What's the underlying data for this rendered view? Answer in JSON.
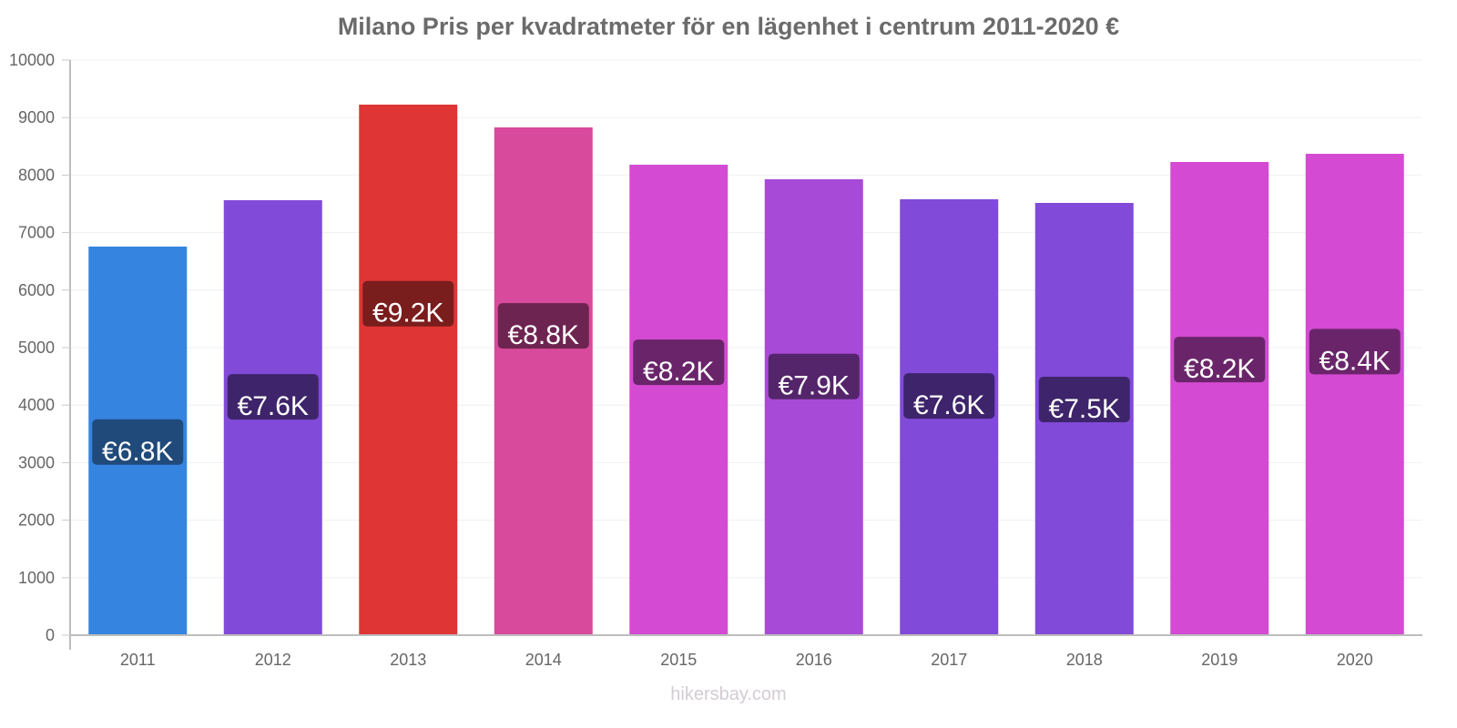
{
  "chart_data": {
    "type": "bar",
    "title": "Milano Pris per kvadratmeter för en lägenhet i centrum 2011-2020 €",
    "xlabel": "",
    "ylabel": "",
    "ylim": [
      0,
      10000
    ],
    "yticks": [
      0,
      1000,
      2000,
      3000,
      4000,
      5000,
      6000,
      7000,
      8000,
      9000,
      10000
    ],
    "categories": [
      "2011",
      "2012",
      "2013",
      "2014",
      "2015",
      "2016",
      "2017",
      "2018",
      "2019",
      "2020"
    ],
    "values": [
      6757,
      7563,
      9225,
      8829,
      8180,
      7927,
      7579,
      7516,
      8228,
      8370
    ],
    "data_labels": [
      "€6.8K",
      "€7.6K",
      "€9.2K",
      "€8.8K",
      "€8.2K",
      "€7.9K",
      "€7.6K",
      "€7.5K",
      "€8.2K",
      "€8.4K"
    ],
    "bar_colors": [
      "#3584e0",
      "#814ad8",
      "#e03535",
      "#d84a9c",
      "#d54ad3",
      "#a84ad8",
      "#814ad8",
      "#814ad8",
      "#d54ad3",
      "#d54ad3"
    ],
    "label_colors": [
      "#1f4a7a",
      "#3e246a",
      "#7a1d1d",
      "#6e2450",
      "#6a256a",
      "#54256a",
      "#3e246a",
      "#3e246a",
      "#6a256a",
      "#6a256a"
    ],
    "grid": true,
    "legend": "none"
  },
  "watermark": "hikersbay.com"
}
